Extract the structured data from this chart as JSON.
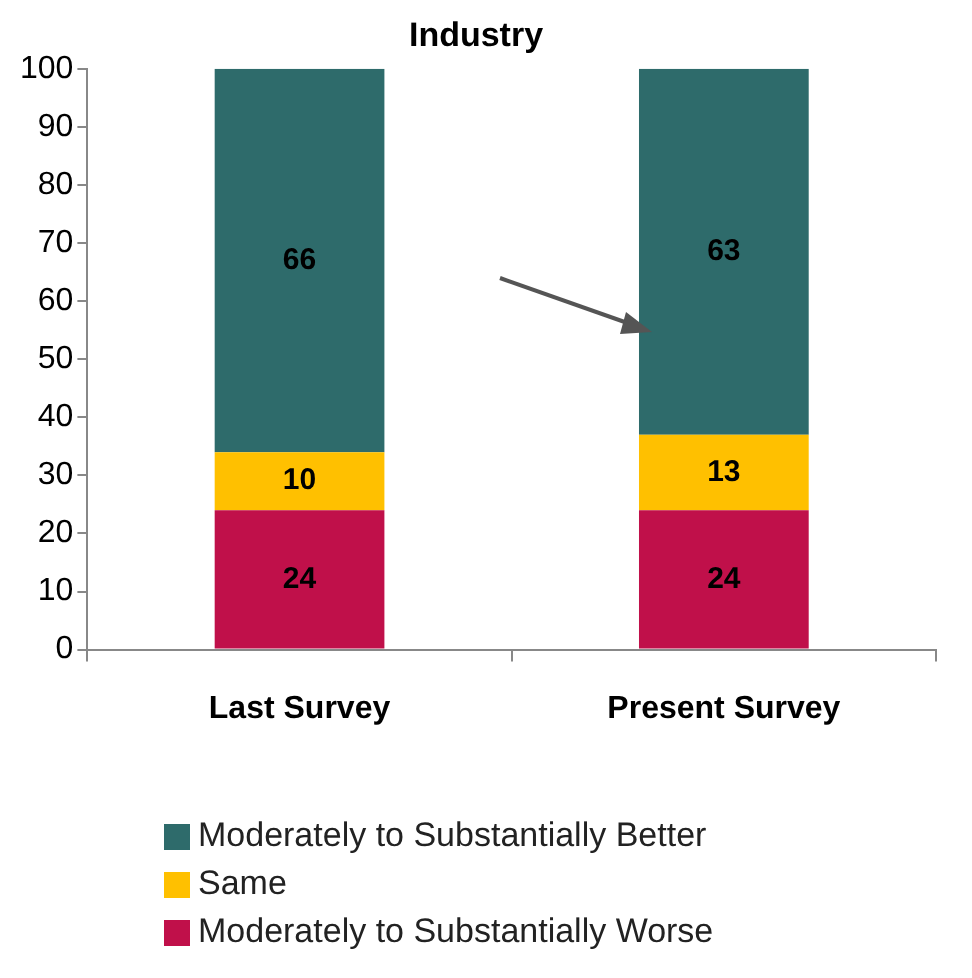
{
  "chart_data": {
    "type": "bar",
    "title": "Industry",
    "stacked": true,
    "categories": [
      "Last Survey",
      "Present Survey"
    ],
    "series": [
      {
        "name": "Moderately to Substantially Worse",
        "color": "#c0104a",
        "values": [
          24,
          24
        ]
      },
      {
        "name": "Same",
        "color": "#ffc000",
        "values": [
          10,
          13
        ]
      },
      {
        "name": "Moderately to Substantially Better",
        "color": "#2e6b6b",
        "values": [
          66,
          63
        ]
      }
    ],
    "ylim": [
      0,
      100
    ],
    "yticks": [
      0,
      10,
      20,
      30,
      40,
      50,
      60,
      70,
      80,
      90,
      100
    ],
    "grid": false,
    "legend": "bottom",
    "data_labels": true
  }
}
